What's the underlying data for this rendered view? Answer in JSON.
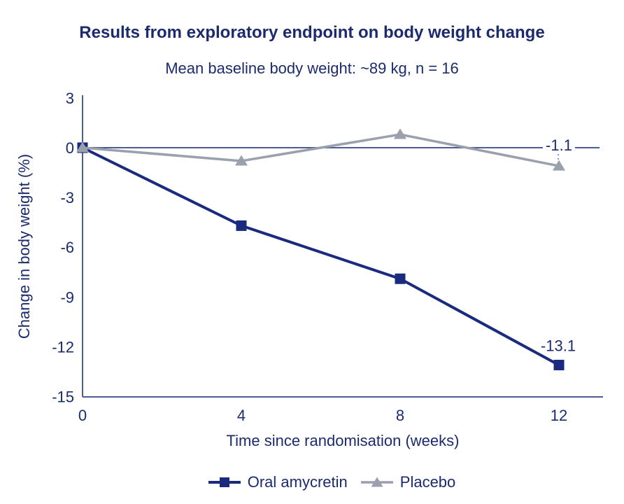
{
  "header": {
    "title": "Results from exploratory endpoint on body weight change",
    "subtitle": "Mean baseline body weight: ~89 kg, n = 16"
  },
  "chart_data": {
    "type": "line",
    "x": [
      0,
      4,
      8,
      12
    ],
    "xlabel": "Time since randomisation (weeks)",
    "ylabel": "Change in body weight (%)",
    "xticks": [
      0,
      4,
      8,
      12
    ],
    "yticks": [
      3,
      0,
      -3,
      -6,
      -9,
      -12,
      -15
    ],
    "ylim": [
      -15,
      3
    ],
    "xlim": [
      0,
      13.1
    ],
    "grid": false,
    "zero_line": true,
    "legend_position": "bottom",
    "series": [
      {
        "name": "Oral amycretin",
        "marker": "square",
        "color": "#1a2a7e",
        "line_width": 4,
        "values": [
          0,
          -4.7,
          -7.9,
          -13.1
        ],
        "end_label": "-13.1",
        "end_label_position": "above_point"
      },
      {
        "name": "Placebo",
        "marker": "triangle",
        "color": "#9aa0ac",
        "line_width": 3.5,
        "values": [
          0,
          -0.8,
          0.8,
          -1.1
        ],
        "end_label": "-1.1",
        "end_label_position": "on_zero_line"
      }
    ]
  },
  "colors": {
    "background": "#ffffff",
    "text_navy": "#1b2b6e",
    "series_navy": "#1a2a7e",
    "series_gray": "#9aa0ac",
    "axis": "#4d5c96",
    "connector": "#8a93b8"
  }
}
